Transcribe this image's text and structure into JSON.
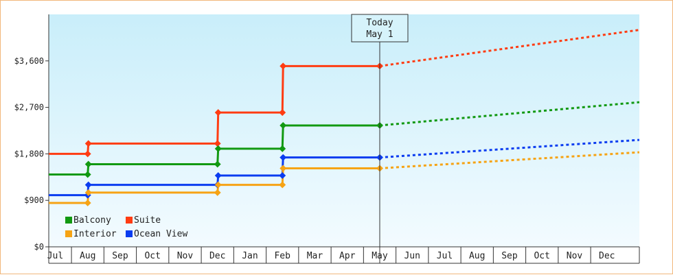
{
  "chart_data": {
    "type": "line",
    "title": "",
    "xlabel": "",
    "ylabel": "",
    "grid": false,
    "legend_placement": "bottom-left",
    "ylim": [
      0,
      4500
    ],
    "yticks": [
      0,
      900,
      1800,
      2700,
      3600
    ],
    "ytick_labels": [
      "$0",
      "$900",
      "$1,800",
      "$2,700",
      "$3,600"
    ],
    "month_labels": [
      "Jul",
      "Aug",
      "Sep",
      "Oct",
      "Nov",
      "Dec",
      "Jan",
      "Feb",
      "Mar",
      "Apr",
      "May",
      "Jun",
      "Jul",
      "Aug",
      "Sep",
      "Oct",
      "Nov",
      "Dec"
    ],
    "x_domain": [
      -0.2,
      18.0
    ],
    "today": {
      "line1": "Today",
      "line2": "May 1",
      "x": 10
    },
    "series": [
      {
        "name": "Suite",
        "color": "#ff3c12",
        "steps": [
          [
            -0.2,
            1800
          ],
          [
            1.0,
            2000
          ],
          [
            5.0,
            2600
          ],
          [
            7.0,
            3500
          ],
          [
            10.0,
            3500
          ]
        ],
        "forecast_end": 4200
      },
      {
        "name": "Balcony",
        "color": "#119911",
        "steps": [
          [
            -0.2,
            1400
          ],
          [
            1.0,
            1600
          ],
          [
            5.0,
            1900
          ],
          [
            7.0,
            2350
          ],
          [
            10.0,
            2350
          ]
        ],
        "forecast_end": 2800
      },
      {
        "name": "Ocean View",
        "color": "#0a3cf0",
        "steps": [
          [
            -0.2,
            1000
          ],
          [
            1.0,
            1200
          ],
          [
            5.0,
            1380
          ],
          [
            7.0,
            1730
          ],
          [
            10.0,
            1730
          ]
        ],
        "forecast_end": 2070
      },
      {
        "name": "Interior",
        "color": "#f6a314",
        "steps": [
          [
            -0.2,
            850
          ],
          [
            1.0,
            1050
          ],
          [
            5.0,
            1200
          ],
          [
            7.0,
            1520
          ],
          [
            10.0,
            1520
          ]
        ],
        "forecast_end": 1830
      }
    ],
    "legend": [
      {
        "name": "Balcony",
        "color": "#119911"
      },
      {
        "name": "Suite",
        "color": "#ff3c12"
      },
      {
        "name": "Interior",
        "color": "#f6a314"
      },
      {
        "name": "Ocean View",
        "color": "#0a3cf0"
      }
    ]
  }
}
